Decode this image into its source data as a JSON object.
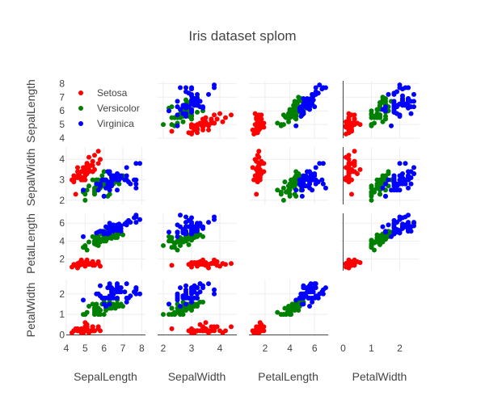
{
  "chart_data": {
    "type": "scatter",
    "subtype": "scatter-matrix",
    "title": "Iris dataset splom",
    "dimensions": [
      "SepalLength",
      "SepalWidth",
      "PetalLength",
      "PetalWidth"
    ],
    "diagonal_visible": false,
    "grid": true,
    "legend_position": "top-left",
    "axis_ranges": {
      "SepalLength": [
        4,
        8.2
      ],
      "SepalWidth": [
        1.8,
        4.6
      ],
      "PetalLength": [
        0.7,
        7.1
      ],
      "PetalWidth": [
        -0.1,
        2.7
      ]
    },
    "ticks": {
      "SepalLength": [
        4,
        5,
        6,
        7,
        8
      ],
      "SepalWidth": [
        2,
        3,
        4
      ],
      "PetalLength": [
        2,
        4,
        6
      ],
      "PetalWidth": [
        0,
        1,
        2
      ]
    },
    "series": [
      {
        "name": "Setosa",
        "color": "#ff0000",
        "points": [
          [
            5.1,
            3.5,
            1.4,
            0.2
          ],
          [
            4.9,
            3.0,
            1.4,
            0.2
          ],
          [
            4.7,
            3.2,
            1.3,
            0.2
          ],
          [
            4.6,
            3.1,
            1.5,
            0.2
          ],
          [
            5.0,
            3.6,
            1.4,
            0.2
          ],
          [
            5.4,
            3.9,
            1.7,
            0.4
          ],
          [
            4.6,
            3.4,
            1.4,
            0.3
          ],
          [
            5.0,
            3.4,
            1.5,
            0.2
          ],
          [
            4.4,
            2.9,
            1.4,
            0.2
          ],
          [
            4.9,
            3.1,
            1.5,
            0.1
          ],
          [
            5.4,
            3.7,
            1.5,
            0.2
          ],
          [
            4.8,
            3.4,
            1.6,
            0.2
          ],
          [
            4.8,
            3.0,
            1.4,
            0.1
          ],
          [
            4.3,
            3.0,
            1.1,
            0.1
          ],
          [
            5.8,
            4.0,
            1.2,
            0.2
          ],
          [
            5.7,
            4.4,
            1.5,
            0.4
          ],
          [
            5.4,
            3.9,
            1.3,
            0.4
          ],
          [
            5.1,
            3.5,
            1.4,
            0.3
          ],
          [
            5.7,
            3.8,
            1.7,
            0.3
          ],
          [
            5.1,
            3.8,
            1.5,
            0.3
          ],
          [
            5.4,
            3.4,
            1.7,
            0.2
          ],
          [
            5.1,
            3.7,
            1.5,
            0.4
          ],
          [
            4.6,
            3.6,
            1.0,
            0.2
          ],
          [
            5.1,
            3.3,
            1.7,
            0.5
          ],
          [
            4.8,
            3.4,
            1.9,
            0.2
          ],
          [
            5.0,
            3.0,
            1.6,
            0.2
          ],
          [
            5.0,
            3.4,
            1.6,
            0.4
          ],
          [
            5.2,
            3.5,
            1.5,
            0.2
          ],
          [
            5.2,
            3.4,
            1.4,
            0.2
          ],
          [
            4.7,
            3.2,
            1.6,
            0.2
          ],
          [
            4.8,
            3.1,
            1.6,
            0.2
          ],
          [
            5.4,
            3.4,
            1.5,
            0.4
          ],
          [
            5.2,
            4.1,
            1.5,
            0.1
          ],
          [
            5.5,
            4.2,
            1.4,
            0.2
          ],
          [
            4.9,
            3.1,
            1.5,
            0.2
          ],
          [
            5.0,
            3.2,
            1.2,
            0.2
          ],
          [
            5.5,
            3.5,
            1.3,
            0.2
          ],
          [
            4.9,
            3.6,
            1.4,
            0.1
          ],
          [
            4.4,
            3.0,
            1.3,
            0.2
          ],
          [
            5.1,
            3.4,
            1.5,
            0.2
          ],
          [
            5.0,
            3.5,
            1.3,
            0.3
          ],
          [
            4.5,
            2.3,
            1.3,
            0.3
          ],
          [
            4.4,
            3.2,
            1.3,
            0.2
          ],
          [
            5.0,
            3.5,
            1.6,
            0.6
          ],
          [
            5.1,
            3.8,
            1.9,
            0.4
          ],
          [
            4.8,
            3.0,
            1.4,
            0.3
          ],
          [
            5.1,
            3.8,
            1.6,
            0.2
          ],
          [
            4.6,
            3.2,
            1.4,
            0.2
          ],
          [
            5.3,
            3.7,
            1.5,
            0.2
          ],
          [
            5.0,
            3.3,
            1.4,
            0.2
          ]
        ]
      },
      {
        "name": "Versicolor",
        "color": "#008000",
        "points": [
          [
            7.0,
            3.2,
            4.7,
            1.4
          ],
          [
            6.4,
            3.2,
            4.5,
            1.5
          ],
          [
            6.9,
            3.1,
            4.9,
            1.5
          ],
          [
            5.5,
            2.3,
            4.0,
            1.3
          ],
          [
            6.5,
            2.8,
            4.6,
            1.5
          ],
          [
            5.7,
            2.8,
            4.5,
            1.3
          ],
          [
            6.3,
            3.3,
            4.7,
            1.6
          ],
          [
            4.9,
            2.4,
            3.3,
            1.0
          ],
          [
            6.6,
            2.9,
            4.6,
            1.3
          ],
          [
            5.2,
            2.7,
            3.9,
            1.4
          ],
          [
            5.0,
            2.0,
            3.5,
            1.0
          ],
          [
            5.9,
            3.0,
            4.2,
            1.5
          ],
          [
            6.0,
            2.2,
            4.0,
            1.0
          ],
          [
            6.1,
            2.9,
            4.7,
            1.4
          ],
          [
            5.6,
            2.9,
            3.6,
            1.3
          ],
          [
            6.7,
            3.1,
            4.4,
            1.4
          ],
          [
            5.6,
            3.0,
            4.5,
            1.5
          ],
          [
            5.8,
            2.7,
            4.1,
            1.0
          ],
          [
            6.2,
            2.2,
            4.5,
            1.5
          ],
          [
            5.6,
            2.5,
            3.9,
            1.1
          ],
          [
            5.9,
            3.2,
            4.8,
            1.8
          ],
          [
            6.1,
            2.8,
            4.0,
            1.3
          ],
          [
            6.3,
            2.5,
            4.9,
            1.5
          ],
          [
            6.1,
            2.8,
            4.7,
            1.2
          ],
          [
            6.4,
            2.9,
            4.3,
            1.3
          ],
          [
            6.6,
            3.0,
            4.4,
            1.4
          ],
          [
            6.8,
            2.8,
            4.8,
            1.4
          ],
          [
            6.7,
            3.0,
            5.0,
            1.7
          ],
          [
            6.0,
            2.9,
            4.5,
            1.5
          ],
          [
            5.7,
            2.6,
            3.5,
            1.0
          ],
          [
            5.5,
            2.4,
            3.8,
            1.1
          ],
          [
            5.5,
            2.4,
            3.7,
            1.0
          ],
          [
            5.8,
            2.7,
            3.9,
            1.2
          ],
          [
            6.0,
            2.7,
            5.1,
            1.6
          ],
          [
            5.4,
            3.0,
            4.5,
            1.5
          ],
          [
            6.0,
            3.4,
            4.5,
            1.6
          ],
          [
            6.7,
            3.1,
            4.7,
            1.5
          ],
          [
            6.3,
            2.3,
            4.4,
            1.3
          ],
          [
            5.6,
            3.0,
            4.1,
            1.3
          ],
          [
            5.5,
            2.5,
            4.0,
            1.3
          ],
          [
            5.5,
            2.6,
            4.4,
            1.2
          ],
          [
            6.1,
            3.0,
            4.6,
            1.4
          ],
          [
            5.8,
            2.6,
            4.0,
            1.2
          ],
          [
            5.0,
            2.3,
            3.3,
            1.0
          ],
          [
            5.6,
            2.7,
            4.2,
            1.3
          ],
          [
            5.7,
            3.0,
            4.2,
            1.2
          ],
          [
            5.7,
            2.9,
            4.2,
            1.3
          ],
          [
            6.2,
            2.9,
            4.3,
            1.3
          ],
          [
            5.1,
            2.5,
            3.0,
            1.1
          ],
          [
            5.7,
            2.8,
            4.1,
            1.3
          ]
        ]
      },
      {
        "name": "Virginica",
        "color": "#0000ff",
        "points": [
          [
            6.3,
            3.3,
            6.0,
            2.5
          ],
          [
            5.8,
            2.7,
            5.1,
            1.9
          ],
          [
            7.1,
            3.0,
            5.9,
            2.1
          ],
          [
            6.3,
            2.9,
            5.6,
            1.8
          ],
          [
            6.5,
            3.0,
            5.8,
            2.2
          ],
          [
            7.6,
            3.0,
            6.6,
            2.1
          ],
          [
            4.9,
            2.5,
            4.5,
            1.7
          ],
          [
            7.3,
            2.9,
            6.3,
            1.8
          ],
          [
            6.7,
            2.5,
            5.8,
            1.8
          ],
          [
            7.2,
            3.6,
            6.1,
            2.5
          ],
          [
            6.5,
            3.2,
            5.1,
            2.0
          ],
          [
            6.4,
            2.7,
            5.3,
            1.9
          ],
          [
            6.8,
            3.0,
            5.5,
            2.1
          ],
          [
            5.7,
            2.5,
            5.0,
            2.0
          ],
          [
            5.8,
            2.8,
            5.1,
            2.4
          ],
          [
            6.4,
            3.2,
            5.3,
            2.3
          ],
          [
            6.5,
            3.0,
            5.5,
            1.8
          ],
          [
            7.7,
            3.8,
            6.7,
            2.2
          ],
          [
            7.7,
            2.6,
            6.9,
            2.3
          ],
          [
            6.0,
            2.2,
            5.0,
            1.5
          ],
          [
            6.9,
            3.2,
            5.7,
            2.3
          ],
          [
            5.6,
            2.8,
            4.9,
            2.0
          ],
          [
            7.7,
            2.8,
            6.7,
            2.0
          ],
          [
            6.3,
            2.7,
            4.9,
            1.8
          ],
          [
            6.7,
            3.3,
            5.7,
            2.1
          ],
          [
            7.2,
            3.2,
            6.0,
            1.8
          ],
          [
            6.2,
            2.8,
            4.8,
            1.8
          ],
          [
            6.1,
            3.0,
            4.9,
            1.8
          ],
          [
            6.4,
            2.8,
            5.6,
            2.1
          ],
          [
            7.2,
            3.0,
            5.8,
            1.6
          ],
          [
            7.4,
            2.8,
            6.1,
            1.9
          ],
          [
            7.9,
            3.8,
            6.4,
            2.0
          ],
          [
            6.4,
            2.8,
            5.6,
            2.2
          ],
          [
            6.3,
            2.8,
            5.1,
            1.5
          ],
          [
            6.1,
            2.6,
            5.6,
            1.4
          ],
          [
            7.7,
            3.0,
            6.1,
            2.3
          ],
          [
            6.3,
            3.4,
            5.6,
            2.4
          ],
          [
            6.4,
            3.1,
            5.5,
            1.8
          ],
          [
            6.0,
            3.0,
            4.8,
            1.8
          ],
          [
            6.9,
            3.1,
            5.4,
            2.1
          ],
          [
            6.7,
            3.1,
            5.6,
            2.4
          ],
          [
            6.9,
            3.1,
            5.1,
            2.3
          ],
          [
            5.8,
            2.7,
            5.1,
            1.9
          ],
          [
            6.8,
            3.2,
            5.9,
            2.3
          ],
          [
            6.7,
            3.3,
            5.7,
            2.5
          ],
          [
            6.7,
            3.0,
            5.2,
            2.3
          ],
          [
            6.3,
            2.5,
            5.0,
            1.9
          ],
          [
            6.5,
            3.0,
            5.2,
            2.0
          ],
          [
            6.2,
            3.4,
            5.4,
            2.3
          ],
          [
            5.9,
            3.0,
            5.1,
            1.8
          ]
        ]
      }
    ]
  }
}
